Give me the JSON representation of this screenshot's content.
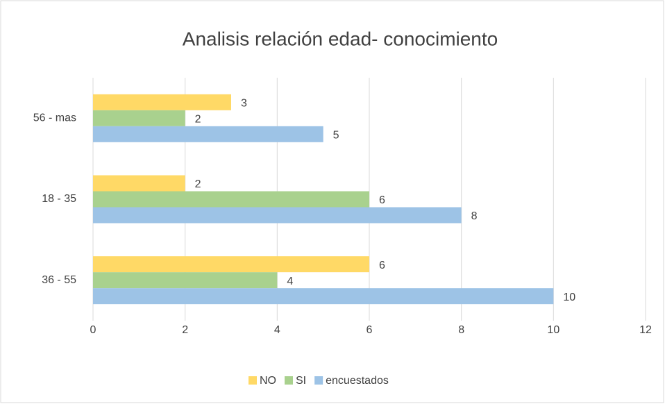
{
  "chart_data": {
    "type": "hbar",
    "title": "Analisis relación edad- conocimiento",
    "categories": [
      "36 - 55",
      "18 - 35",
      "56 - mas"
    ],
    "series": [
      {
        "name": "NO",
        "color": "#ffd966",
        "values": [
          6,
          2,
          3
        ]
      },
      {
        "name": "SI",
        "color": "#a9d18e",
        "values": [
          4,
          6,
          2
        ]
      },
      {
        "name": "encuestados",
        "color": "#9dc3e6",
        "values": [
          10,
          8,
          5
        ]
      }
    ],
    "xlim": [
      0,
      12
    ],
    "xticks": [
      0,
      2,
      4,
      6,
      8,
      10,
      12
    ],
    "grid": true,
    "legend": "bottom"
  }
}
